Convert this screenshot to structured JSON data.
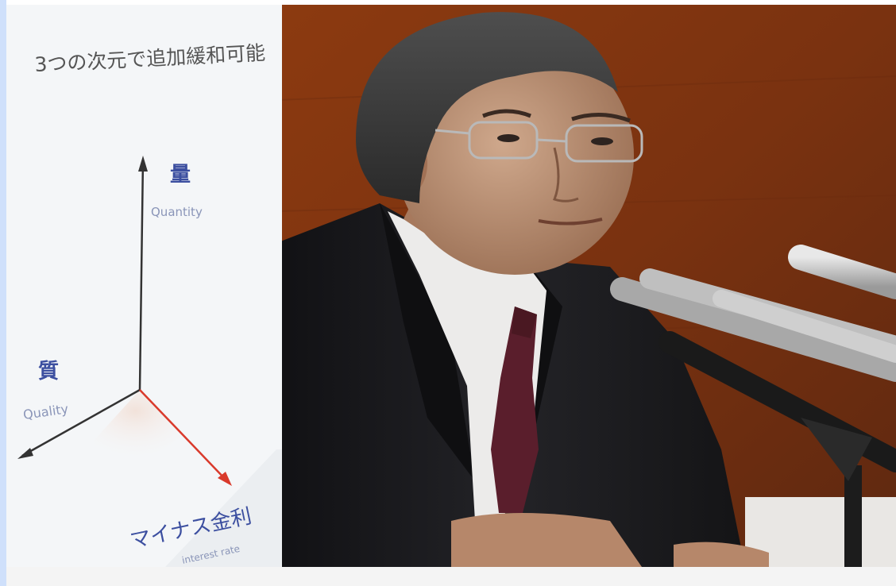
{
  "photo": {
    "board": {
      "title": "3つの次元で追加緩和可能",
      "axis_quantity_jp": "量",
      "axis_quantity_en": "Quantity",
      "axis_quality_jp": "質",
      "axis_quality_en": "Quality",
      "axis_rate_jp": "マイナス金利",
      "axis_rate_en": "interest rate"
    },
    "colors": {
      "wall": "#8a3a12",
      "board": "#f4f6f8",
      "suit": "#1b1b1d",
      "tie": "#5a1e2c"
    }
  }
}
